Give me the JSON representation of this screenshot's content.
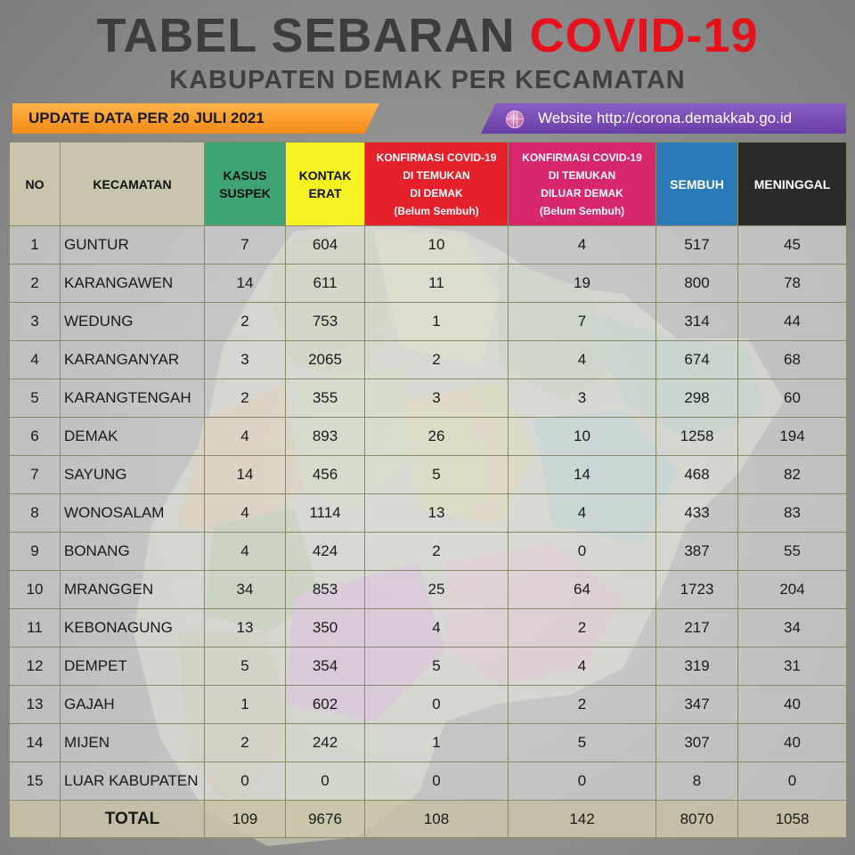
{
  "title": {
    "part1": "TABEL SEBARAN",
    "part2": "COVID-19"
  },
  "subtitle": "KABUPATEN DEMAK PER KECAMATAN",
  "update_text": "UPDATE DATA PER 20 JULI 2021",
  "website_text": "Website http://corona.demakkab.go.id",
  "colors": {
    "suspek": "#3fa474",
    "kontak": "#f6f120",
    "demak": "#e6212b",
    "luar": "#d8266d",
    "sembuh": "#2a7ab8",
    "meninggal": "#2a2a2a",
    "title_red": "#e8101a"
  },
  "table": {
    "headers": {
      "no": "NO",
      "kecamatan": "KECAMATAN",
      "suspek": [
        "KASUS",
        "SUSPEK"
      ],
      "kontak": [
        "KONTAK",
        "ERAT"
      ],
      "demak": [
        "KONFIRMASI  COVID-19",
        "DI TEMUKAN",
        "DI DEMAK",
        "(Belum Sembuh)"
      ],
      "luar": [
        "KONFIRMASI COVID-19",
        "DI TEMUKAN",
        "DILUAR DEMAK",
        "(Belum Sembuh)"
      ],
      "sembuh": "SEMBUH",
      "meninggal": "MENINGGAL"
    },
    "rows": [
      [
        "1",
        "GUNTUR",
        "7",
        "604",
        "10",
        "4",
        "517",
        "45"
      ],
      [
        "2",
        "KARANGAWEN",
        "14",
        "611",
        "11",
        "19",
        "800",
        "78"
      ],
      [
        "3",
        "WEDUNG",
        "2",
        "753",
        "1",
        "7",
        "314",
        "44"
      ],
      [
        "4",
        "KARANGANYAR",
        "3",
        "2065",
        "2",
        "4",
        "674",
        "68"
      ],
      [
        "5",
        "KARANGTENGAH",
        "2",
        "355",
        "3",
        "3",
        "298",
        "60"
      ],
      [
        "6",
        "DEMAK",
        "4",
        "893",
        "26",
        "10",
        "1258",
        "194"
      ],
      [
        "7",
        "SAYUNG",
        "14",
        "456",
        "5",
        "14",
        "468",
        "82"
      ],
      [
        "8",
        "WONOSALAM",
        "4",
        "1114",
        "13",
        "4",
        "433",
        "83"
      ],
      [
        "9",
        "BONANG",
        "4",
        "424",
        "2",
        "0",
        "387",
        "55"
      ],
      [
        "10",
        "MRANGGEN",
        "34",
        "853",
        "25",
        "64",
        "1723",
        "204"
      ],
      [
        "11",
        "KEBONAGUNG",
        "13",
        "350",
        "4",
        "2",
        "217",
        "34"
      ],
      [
        "12",
        "DEMPET",
        "5",
        "354",
        "5",
        "4",
        "319",
        "31"
      ],
      [
        "13",
        "GAJAH",
        "1",
        "602",
        "0",
        "2",
        "347",
        "40"
      ],
      [
        "14",
        "MIJEN",
        "2",
        "242",
        "1",
        "5",
        "307",
        "40"
      ],
      [
        "15",
        "LUAR KABUPATEN",
        "0",
        "0",
        "0",
        "0",
        "8",
        "0"
      ]
    ],
    "total": {
      "label": "TOTAL",
      "values": [
        "109",
        "9676",
        "108",
        "142",
        "8070",
        "1058"
      ]
    }
  }
}
